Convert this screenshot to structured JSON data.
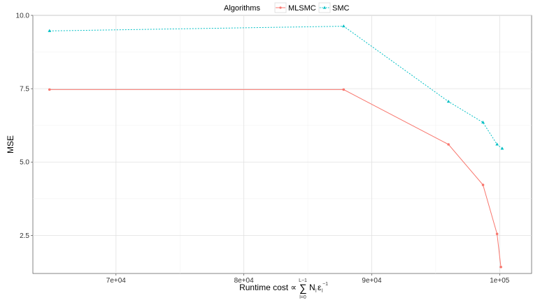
{
  "chart_data": {
    "type": "line",
    "xlabel": "Runtime cost ∝",
    "xlabel_sum": "∑",
    "xlabel_sum_upper": "L−1",
    "xlabel_sum_lower": "l=0",
    "xlabel_term_base": "N",
    "xlabel_term_sub": "l",
    "xlabel_term_eps": "ε",
    "xlabel_term_eps_sub": "l",
    "xlabel_term_exp": "−1",
    "ylabel": "MSE",
    "xlim": [
      63500,
      102500
    ],
    "ylim": [
      1.2,
      10.0
    ],
    "x_ticks": [
      70000,
      80000,
      90000,
      100000
    ],
    "x_tick_labels": [
      "7e+04",
      "8e+04",
      "9e+04",
      "1e+05"
    ],
    "y_ticks": [
      2.5,
      5.0,
      7.5,
      10.0
    ],
    "y_tick_labels": [
      "2.5",
      "5.0",
      "7.5",
      "10.0"
    ],
    "grid": true,
    "legend": {
      "title": "Algorithms",
      "placement": "top"
    },
    "series": [
      {
        "name": "MLSMC",
        "color": "#F8766D",
        "dash": "solid",
        "marker": "circle",
        "x": [
          64800,
          87800,
          96000,
          98700,
          99800,
          100100
        ],
        "y": [
          7.47,
          7.47,
          5.6,
          4.22,
          2.55,
          1.42
        ]
      },
      {
        "name": "SMC",
        "color": "#00BFC4",
        "dash": "dotted",
        "marker": "triangle",
        "x": [
          64800,
          87800,
          96000,
          98700,
          99800,
          100200
        ],
        "y": [
          9.47,
          9.63,
          7.06,
          6.35,
          5.6,
          5.46
        ]
      }
    ]
  }
}
